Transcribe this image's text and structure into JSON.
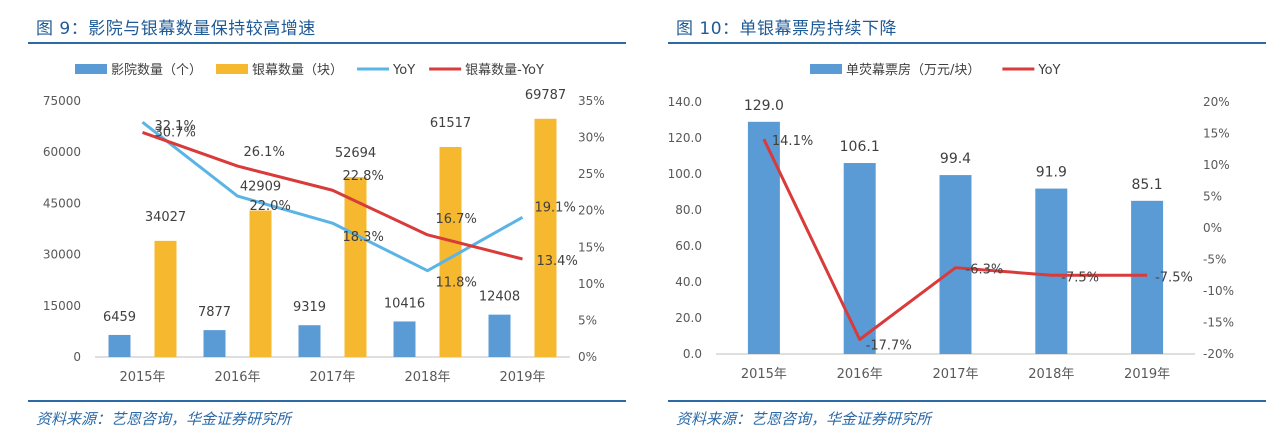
{
  "source_text": "资料来源：艺恩咨询，华金证券研究所",
  "chart_data": [
    {
      "type": "bar",
      "title": "图 9：影院与银幕数量保持较高增速",
      "categories": [
        "2015年",
        "2016年",
        "2017年",
        "2018年",
        "2019年"
      ],
      "series": [
        {
          "name": "影院数量（个）",
          "kind": "bar",
          "axis": "left",
          "color": "#5b9bd5",
          "values": [
            6459,
            7877,
            9319,
            10416,
            12408
          ],
          "labels": [
            "6459",
            "7877",
            "9319",
            "10416",
            "12408"
          ]
        },
        {
          "name": "银幕数量（块）",
          "kind": "bar",
          "axis": "left",
          "color": "#f5b82e",
          "values": [
            34027,
            42909,
            52694,
            61517,
            69787
          ],
          "labels": [
            "34027",
            "42909",
            "52694",
            "61517",
            "69787"
          ]
        },
        {
          "name": "YoY",
          "kind": "line",
          "axis": "right",
          "color": "#5ab4e5",
          "values": [
            32.1,
            22.0,
            18.3,
            11.8,
            19.1
          ],
          "labels": [
            "32.1%",
            "22.0%",
            "18.3%",
            "11.8%",
            "19.1%"
          ]
        },
        {
          "name": "银幕数量-YoY",
          "kind": "line",
          "axis": "right",
          "color": "#d93a3a",
          "values": [
            30.7,
            26.1,
            22.8,
            16.7,
            13.4
          ],
          "labels": [
            "30.7%",
            "26.1%",
            "22.8%",
            "16.7%",
            "13.4%"
          ]
        }
      ],
      "y_left": {
        "min": 0,
        "max": 75000,
        "ticks": [
          "0",
          "15000",
          "30000",
          "45000",
          "60000",
          "75000"
        ]
      },
      "y_right": {
        "min": 0,
        "max": 35,
        "ticks": [
          "0%",
          "5%",
          "10%",
          "15%",
          "20%",
          "25%",
          "30%",
          "35%"
        ]
      },
      "grid": false,
      "legend": "top"
    },
    {
      "type": "bar",
      "title": "图 10：单银幕票房持续下降",
      "categories": [
        "2015年",
        "2016年",
        "2017年",
        "2018年",
        "2019年"
      ],
      "series": [
        {
          "name": "单荧幕票房（万元/块）",
          "kind": "bar",
          "axis": "left",
          "color": "#5b9bd5",
          "values": [
            129.0,
            106.1,
            99.4,
            91.9,
            85.1
          ],
          "labels": [
            "129.0",
            "106.1",
            "99.4",
            "91.9",
            "85.1"
          ]
        },
        {
          "name": "YoY",
          "kind": "line",
          "axis": "right",
          "color": "#d93a3a",
          "values": [
            14.1,
            -17.7,
            -6.3,
            -7.5,
            -7.5
          ],
          "labels": [
            "14.1%",
            "-17.7%",
            "-6.3%",
            "-7.5%",
            "-7.5%"
          ]
        }
      ],
      "y_left": {
        "min": 0,
        "max": 140,
        "ticks": [
          "0.0",
          "20.0",
          "40.0",
          "60.0",
          "80.0",
          "100.0",
          "120.0",
          "140.0"
        ]
      },
      "y_right": {
        "min": -20,
        "max": 20,
        "ticks": [
          "-20%",
          "-15%",
          "-10%",
          "-5%",
          "0%",
          "5%",
          "10%",
          "15%",
          "20%"
        ]
      },
      "grid": false,
      "legend": "top"
    }
  ]
}
